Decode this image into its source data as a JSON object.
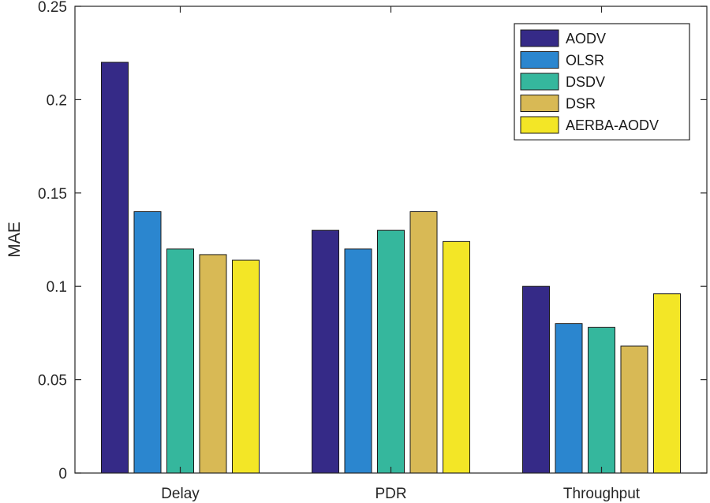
{
  "chart_data": {
    "type": "bar",
    "title": "",
    "xlabel": "",
    "ylabel": "MAE",
    "ylim": [
      0,
      0.25
    ],
    "yticks": [
      0,
      0.05,
      0.1,
      0.15,
      0.2,
      0.25
    ],
    "ytick_labels": [
      "0",
      "0.05",
      "0.1",
      "0.15",
      "0.2",
      "0.25"
    ],
    "categories": [
      "Delay",
      "PDR",
      "Throughput"
    ],
    "series": [
      {
        "name": "AODV",
        "color": "#352a87",
        "values": [
          0.22,
          0.13,
          0.1
        ]
      },
      {
        "name": "OLSR",
        "color": "#2b86cf",
        "values": [
          0.14,
          0.12,
          0.08
        ]
      },
      {
        "name": "DSDV",
        "color": "#35b79d",
        "values": [
          0.12,
          0.13,
          0.078
        ]
      },
      {
        "name": "DSR",
        "color": "#d8b955",
        "values": [
          0.117,
          0.14,
          0.068
        ]
      },
      {
        "name": "AERBA-AODV",
        "color": "#f3e626",
        "values": [
          0.114,
          0.124,
          0.096
        ]
      }
    ],
    "legend": "top-right",
    "grid": false
  }
}
